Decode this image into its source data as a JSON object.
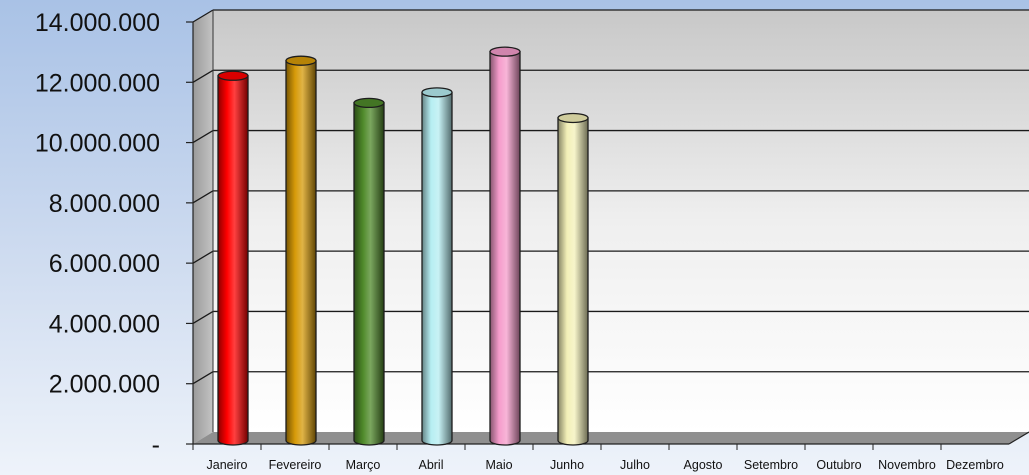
{
  "chart_data": {
    "type": "bar",
    "categories": [
      "Janeiro",
      "Fevereiro",
      "Março",
      "Abril",
      "Maio",
      "Junho",
      "Julho",
      "Agosto",
      "Setembro",
      "Outubro",
      "Novembro",
      "Dezembro"
    ],
    "values": [
      12100000,
      12600000,
      11200000,
      11550000,
      12900000,
      10700000,
      null,
      null,
      null,
      null,
      null,
      null
    ],
    "colors": [
      "#ff0000",
      "#d69a08",
      "#4f8a2a",
      "#b6eef2",
      "#f59ccb",
      "#f3f0b8",
      null,
      null,
      null,
      null,
      null,
      null
    ],
    "y_ticks": [
      "14.000.000",
      "12.000.000",
      "10.000.000",
      "8.000.000",
      "6.000.000",
      "4.000.000",
      "2.000.000",
      "-"
    ],
    "ylim": [
      0,
      14000000
    ],
    "grid": true,
    "legend": "none",
    "title": "",
    "xlabel": "",
    "ylabel": ""
  }
}
